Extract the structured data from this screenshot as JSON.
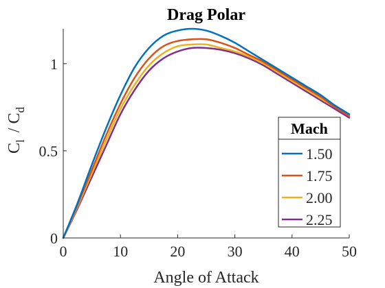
{
  "chart_data": {
    "type": "line",
    "title": "Drag Polar",
    "xlabel": "Angle of Attack",
    "ylabel": {
      "main": "C",
      "sub1": "l",
      "mid": "/ C",
      "sub2": "d"
    },
    "xlim": [
      0,
      50
    ],
    "ylim": [
      0,
      1.2
    ],
    "xticks": [
      0,
      10,
      20,
      30,
      40,
      50
    ],
    "xtick_labels": [
      "0",
      "10",
      "20",
      "30",
      "40",
      "50"
    ],
    "yticks": [
      0,
      0.5,
      1
    ],
    "ytick_labels": [
      "0",
      "0.5",
      "1"
    ],
    "grid": false,
    "legend": {
      "title": "Mach",
      "location": "bottom-right"
    },
    "x": [
      0,
      2.5,
      5,
      7.5,
      10,
      12.5,
      15,
      17.5,
      20,
      22.5,
      25,
      27.5,
      30,
      32.5,
      35,
      37.5,
      40,
      42.5,
      45,
      47.5,
      50
    ],
    "series": [
      {
        "name": "1.50",
        "color": "#0072BD",
        "values": [
          0.0,
          0.2,
          0.42,
          0.63,
          0.82,
          0.98,
          1.09,
          1.16,
          1.19,
          1.2,
          1.19,
          1.16,
          1.12,
          1.07,
          1.02,
          0.97,
          0.92,
          0.87,
          0.82,
          0.76,
          0.71
        ]
      },
      {
        "name": "1.75",
        "color": "#D95319",
        "values": [
          0.0,
          0.19,
          0.39,
          0.59,
          0.77,
          0.92,
          1.03,
          1.1,
          1.13,
          1.14,
          1.14,
          1.12,
          1.09,
          1.05,
          1.01,
          0.96,
          0.91,
          0.86,
          0.81,
          0.75,
          0.7
        ]
      },
      {
        "name": "2.00",
        "color": "#EDB120",
        "values": [
          0.0,
          0.18,
          0.37,
          0.56,
          0.74,
          0.88,
          0.99,
          1.06,
          1.1,
          1.11,
          1.11,
          1.09,
          1.07,
          1.04,
          1.0,
          0.95,
          0.9,
          0.85,
          0.8,
          0.75,
          0.7
        ]
      },
      {
        "name": "2.25",
        "color": "#7E2F8E",
        "values": [
          0.0,
          0.17,
          0.35,
          0.53,
          0.71,
          0.85,
          0.96,
          1.03,
          1.07,
          1.09,
          1.09,
          1.08,
          1.06,
          1.03,
          0.99,
          0.94,
          0.89,
          0.84,
          0.79,
          0.74,
          0.69
        ]
      }
    ]
  }
}
